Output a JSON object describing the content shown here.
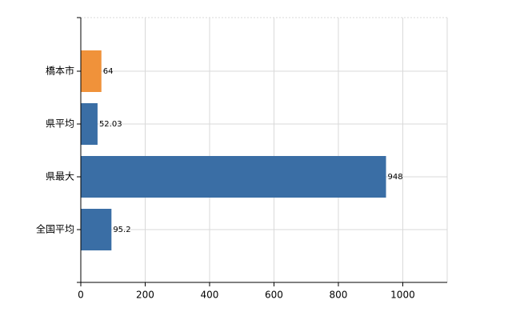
{
  "chart_data": {
    "type": "bar",
    "orientation": "horizontal",
    "categories": [
      "橋本市",
      "県平均",
      "県最大",
      "全国平均"
    ],
    "values": [
      64,
      52.03,
      948,
      95.2
    ],
    "colors": [
      "#f0923a",
      "#3a6ea5",
      "#3a6ea5",
      "#3a6ea5"
    ],
    "xlim": [
      0,
      1138
    ],
    "xticks": [
      0,
      200,
      400,
      600,
      800,
      1000
    ],
    "grid": true
  }
}
